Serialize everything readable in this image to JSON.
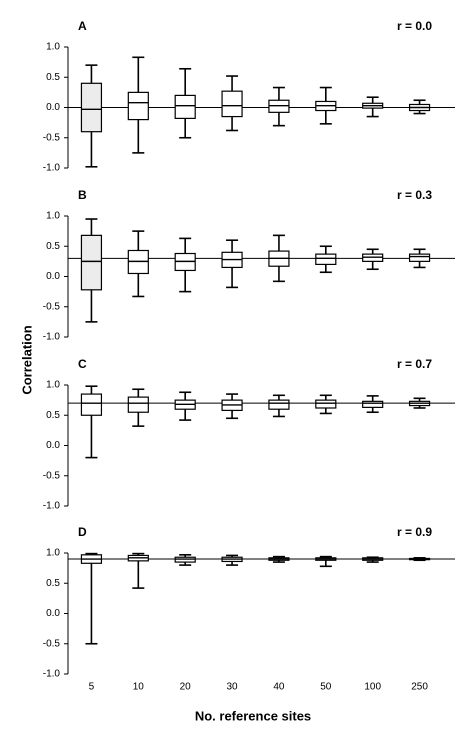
{
  "chart_data": [
    {
      "type": "box",
      "label": "A",
      "annotation": "r = 0.0",
      "reference": 0.0,
      "ylim": [
        -1,
        1
      ],
      "yticks": [
        {
          "value": -1,
          "label": "-1.0"
        },
        {
          "value": -0.5,
          "label": "-0.5"
        },
        {
          "value": 0,
          "label": "0.0"
        },
        {
          "value": 0.5,
          "label": "0.5"
        },
        {
          "value": 1,
          "label": "1.0"
        }
      ],
      "box_colors": [
        "#ececec",
        "#ffffff",
        "#ffffff",
        "#ffffff",
        "#ffffff",
        "#ffffff",
        "#ffffff",
        "#ffffff"
      ],
      "whisker_low": [
        -0.98,
        -0.75,
        -0.5,
        -0.38,
        -0.3,
        -0.27,
        -0.15,
        -0.1
      ],
      "q1": [
        -0.4,
        -0.2,
        -0.18,
        -0.15,
        -0.08,
        -0.05,
        -0.01,
        -0.05
      ],
      "median": [
        -0.03,
        0.08,
        0.03,
        0.03,
        0.03,
        0.03,
        0.03,
        0.0
      ],
      "q3": [
        0.4,
        0.25,
        0.2,
        0.27,
        0.12,
        0.1,
        0.07,
        0.05
      ],
      "whisker_high": [
        0.7,
        0.83,
        0.64,
        0.52,
        0.33,
        0.33,
        0.17,
        0.12
      ]
    },
    {
      "type": "box",
      "label": "B",
      "annotation": "r = 0.3",
      "reference": 0.3,
      "ylim": [
        -1,
        1
      ],
      "yticks": [
        {
          "value": -1,
          "label": "-1.0"
        },
        {
          "value": -0.5,
          "label": "-0.5"
        },
        {
          "value": 0,
          "label": "0.0"
        },
        {
          "value": 0.5,
          "label": "0.5"
        },
        {
          "value": 1,
          "label": "1.0"
        }
      ],
      "box_colors": [
        "#ececec",
        "#ffffff",
        "#ffffff",
        "#ffffff",
        "#ffffff",
        "#ffffff",
        "#ffffff",
        "#ffffff"
      ],
      "whisker_low": [
        -0.75,
        -0.33,
        -0.25,
        -0.18,
        -0.08,
        0.07,
        0.12,
        0.15
      ],
      "q1": [
        -0.22,
        0.05,
        0.1,
        0.15,
        0.17,
        0.2,
        0.25,
        0.25
      ],
      "median": [
        0.25,
        0.25,
        0.25,
        0.28,
        0.3,
        0.3,
        0.32,
        0.33
      ],
      "q3": [
        0.68,
        0.43,
        0.38,
        0.4,
        0.42,
        0.37,
        0.37,
        0.37
      ],
      "whisker_high": [
        0.95,
        0.75,
        0.63,
        0.6,
        0.68,
        0.5,
        0.45,
        0.45
      ]
    },
    {
      "type": "box",
      "label": "C",
      "annotation": "r = 0.7",
      "reference": 0.7,
      "ylim": [
        -1,
        1
      ],
      "yticks": [
        {
          "value": -1,
          "label": "-1.0"
        },
        {
          "value": -0.5,
          "label": "-0.5"
        },
        {
          "value": 0,
          "label": "0.0"
        },
        {
          "value": 0.5,
          "label": "0.5"
        },
        {
          "value": 1,
          "label": "1.0"
        }
      ],
      "box_colors": [
        "#ffffff",
        "#ffffff",
        "#ffffff",
        "#ffffff",
        "#ffffff",
        "#ffffff",
        "#ffffff",
        "#ffffff"
      ],
      "whisker_low": [
        -0.2,
        0.32,
        0.42,
        0.45,
        0.48,
        0.53,
        0.55,
        0.62
      ],
      "q1": [
        0.5,
        0.55,
        0.6,
        0.58,
        0.6,
        0.62,
        0.63,
        0.66
      ],
      "median": [
        0.7,
        0.7,
        0.68,
        0.67,
        0.7,
        0.7,
        0.7,
        0.7
      ],
      "q3": [
        0.85,
        0.8,
        0.75,
        0.75,
        0.75,
        0.75,
        0.73,
        0.73
      ],
      "whisker_high": [
        0.98,
        0.93,
        0.88,
        0.85,
        0.83,
        0.83,
        0.82,
        0.78
      ]
    },
    {
      "type": "box",
      "label": "D",
      "annotation": "r = 0.9",
      "reference": 0.9,
      "ylim": [
        -1,
        1
      ],
      "yticks": [
        {
          "value": -1,
          "label": "-1.0"
        },
        {
          "value": -0.5,
          "label": "-0.5"
        },
        {
          "value": 0,
          "label": "0.0"
        },
        {
          "value": 0.5,
          "label": "0.5"
        },
        {
          "value": 1,
          "label": "1.0"
        }
      ],
      "box_colors": [
        "#ffffff",
        "#ffffff",
        "#ffffff",
        "#ffffff",
        "#ffffff",
        "#ffffff",
        "#ffffff",
        "#ffffff"
      ],
      "whisker_low": [
        -0.5,
        0.42,
        0.8,
        0.8,
        0.85,
        0.78,
        0.85,
        0.88
      ],
      "q1": [
        0.83,
        0.87,
        0.85,
        0.86,
        0.88,
        0.88,
        0.88,
        0.89
      ],
      "median": [
        0.9,
        0.92,
        0.9,
        0.9,
        0.9,
        0.9,
        0.9,
        0.9
      ],
      "q3": [
        0.97,
        0.96,
        0.93,
        0.93,
        0.92,
        0.92,
        0.92,
        0.91
      ],
      "whisker_high": [
        0.99,
        0.99,
        0.97,
        0.96,
        0.94,
        0.94,
        0.93,
        0.92
      ]
    }
  ],
  "categories": [
    "5",
    "10",
    "20",
    "30",
    "40",
    "50",
    "100",
    "250"
  ],
  "xlabel": "No. reference sites",
  "ylabel": "Correlation"
}
